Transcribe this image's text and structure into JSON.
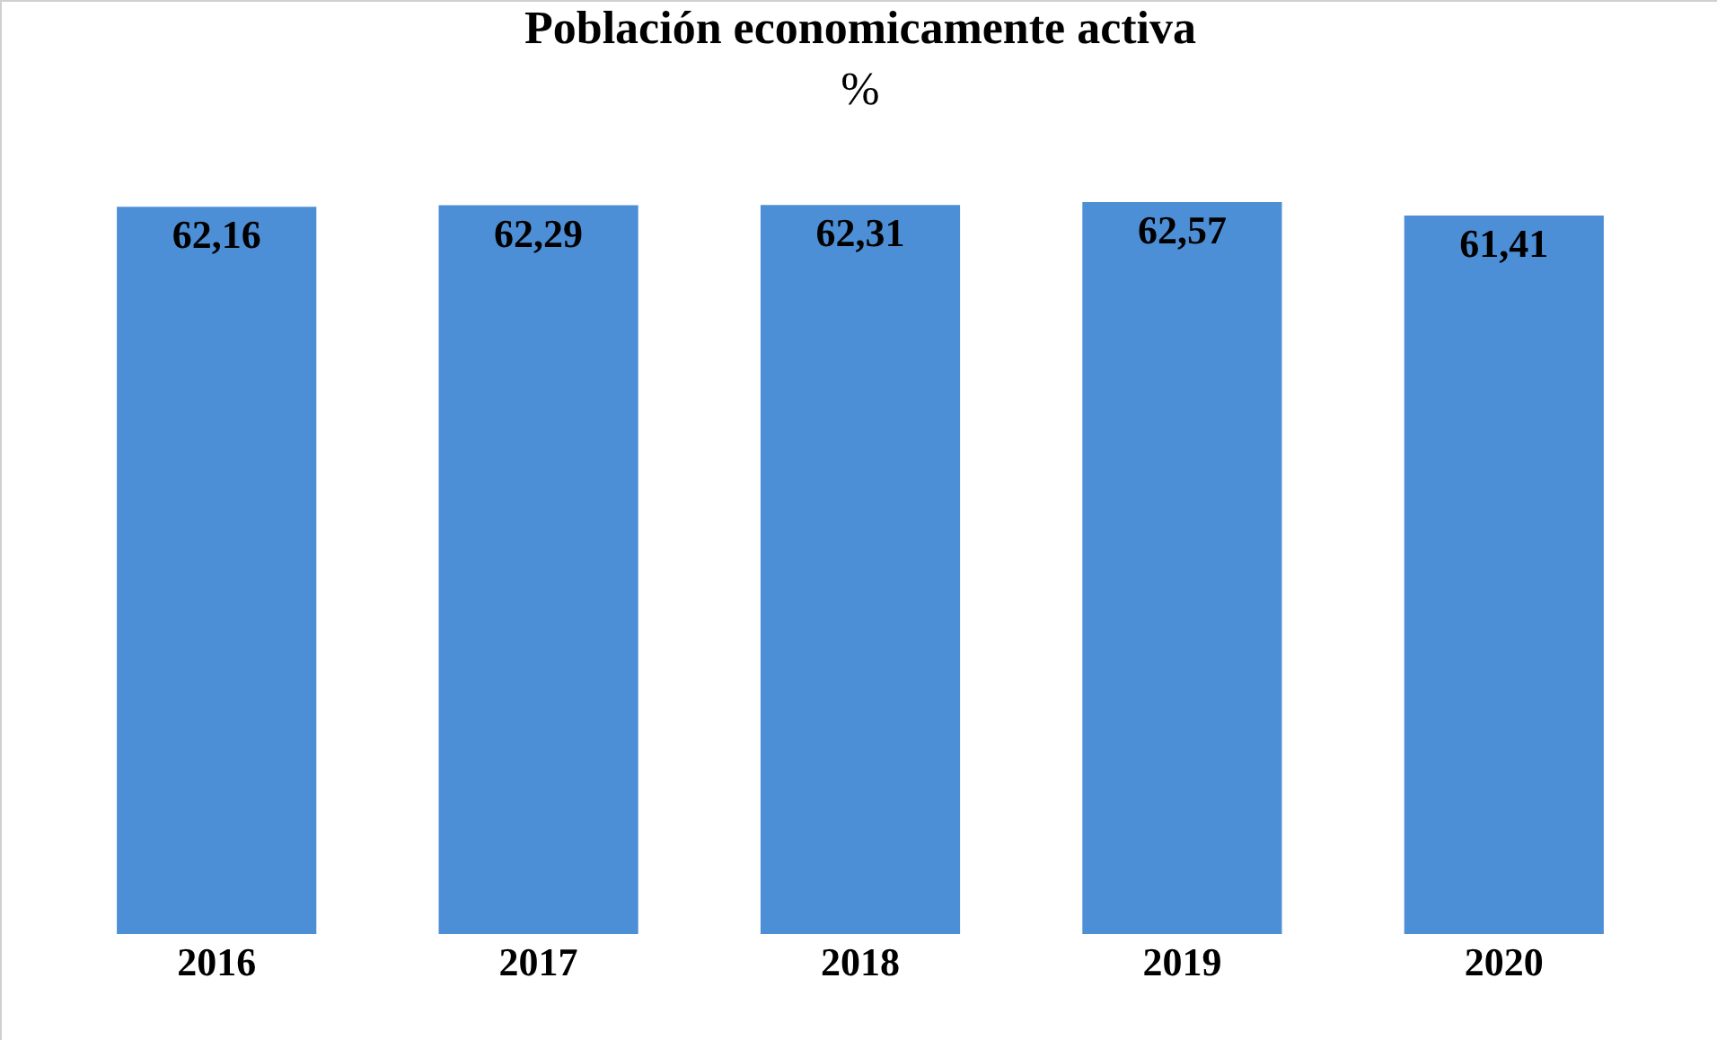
{
  "chart_data": {
    "type": "bar",
    "title": "Población economicamente activa",
    "subtitle": "%",
    "categories": [
      "2016",
      "2017",
      "2018",
      "2019",
      "2020"
    ],
    "values": [
      62.16,
      62.29,
      62.31,
      62.57,
      61.41
    ],
    "value_labels": [
      "62,16",
      "62,29",
      "62,31",
      "62,57",
      "61,41"
    ],
    "color": "#4d8fd6",
    "tick_labels": "x",
    "grid": false,
    "legend": false
  }
}
